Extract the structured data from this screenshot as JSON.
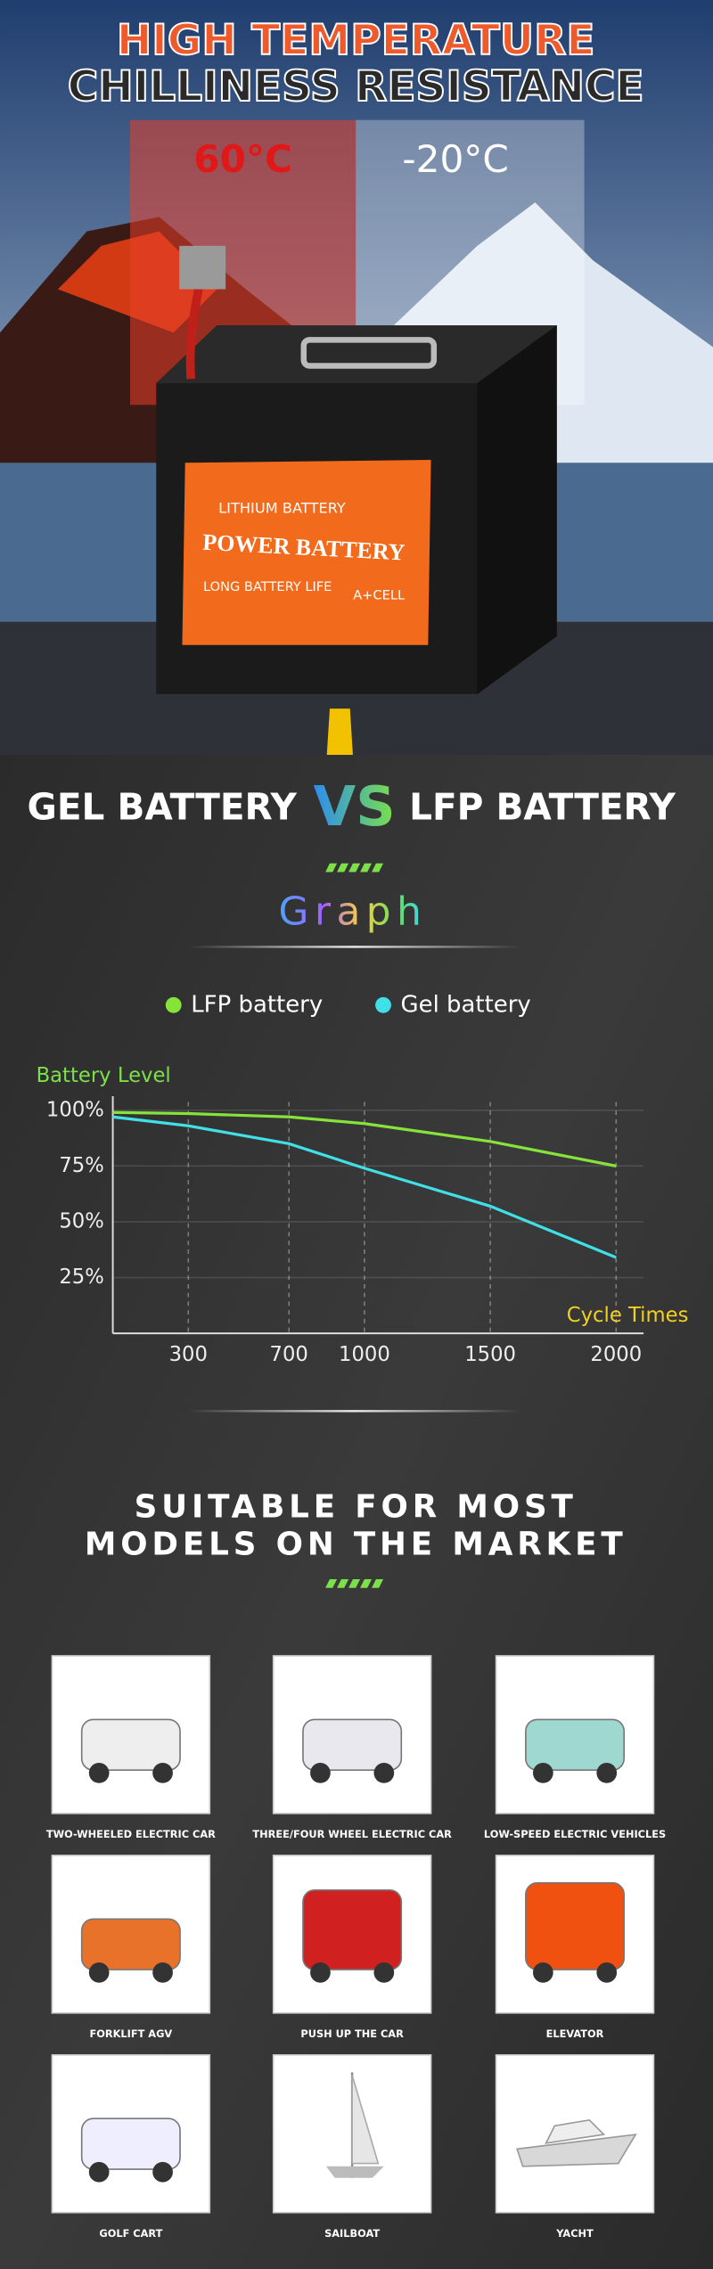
{
  "hero": {
    "title_line1": "HIGH TEMPERATURE",
    "title_line2": "CHILLINESS RESISTANCE",
    "hot_label": "60°C",
    "cold_label": "-20°C",
    "battery_label": {
      "line1": "LITHIUM BATTERY",
      "line2": "POWER BATTERY",
      "line3": "LONG BATTERY LIFE",
      "line4": "A+CELL"
    }
  },
  "comparison": {
    "left": "GEL BATTERY",
    "vs": "VS",
    "right": "LFP BATTERY"
  },
  "chart_data": {
    "type": "line",
    "title": "Graph",
    "y_label": "Battery Level",
    "x_label": "Cycle Times",
    "x": [
      0,
      300,
      700,
      1000,
      1500,
      2000
    ],
    "series": [
      {
        "name": "LFP battery",
        "color": "#86e33a",
        "values": [
          99,
          98.5,
          97,
          94,
          86,
          75
        ]
      },
      {
        "name": "Gel battery",
        "color": "#3fe0e6",
        "values": [
          97,
          93,
          85,
          74,
          57,
          34
        ]
      }
    ],
    "xlim": [
      0,
      2000
    ],
    "xticks": [
      300,
      700,
      1000,
      1500,
      2000
    ],
    "ylim": [
      0,
      105
    ],
    "yticks": [
      {
        "value": 25,
        "label": "25%"
      },
      {
        "value": 50,
        "label": "50%"
      },
      {
        "value": 75,
        "label": "75%"
      },
      {
        "value": 100,
        "label": "100%"
      }
    ],
    "grid": true
  },
  "models": {
    "title_line1": "SUITABLE FOR MOST",
    "title_line2": "MODELS ON THE MARKET",
    "items": [
      "TWO-WHEELED ELECTRIC CAR",
      "THREE/FOUR WHEEL ELECTRIC CAR",
      "LOW-SPEED ELECTRIC VEHICLES",
      "FORKLIFT AGV",
      "PUSH UP THE CAR",
      "ELEVATOR",
      "GOLF CART",
      "SAILBOAT",
      "YACHT"
    ]
  }
}
